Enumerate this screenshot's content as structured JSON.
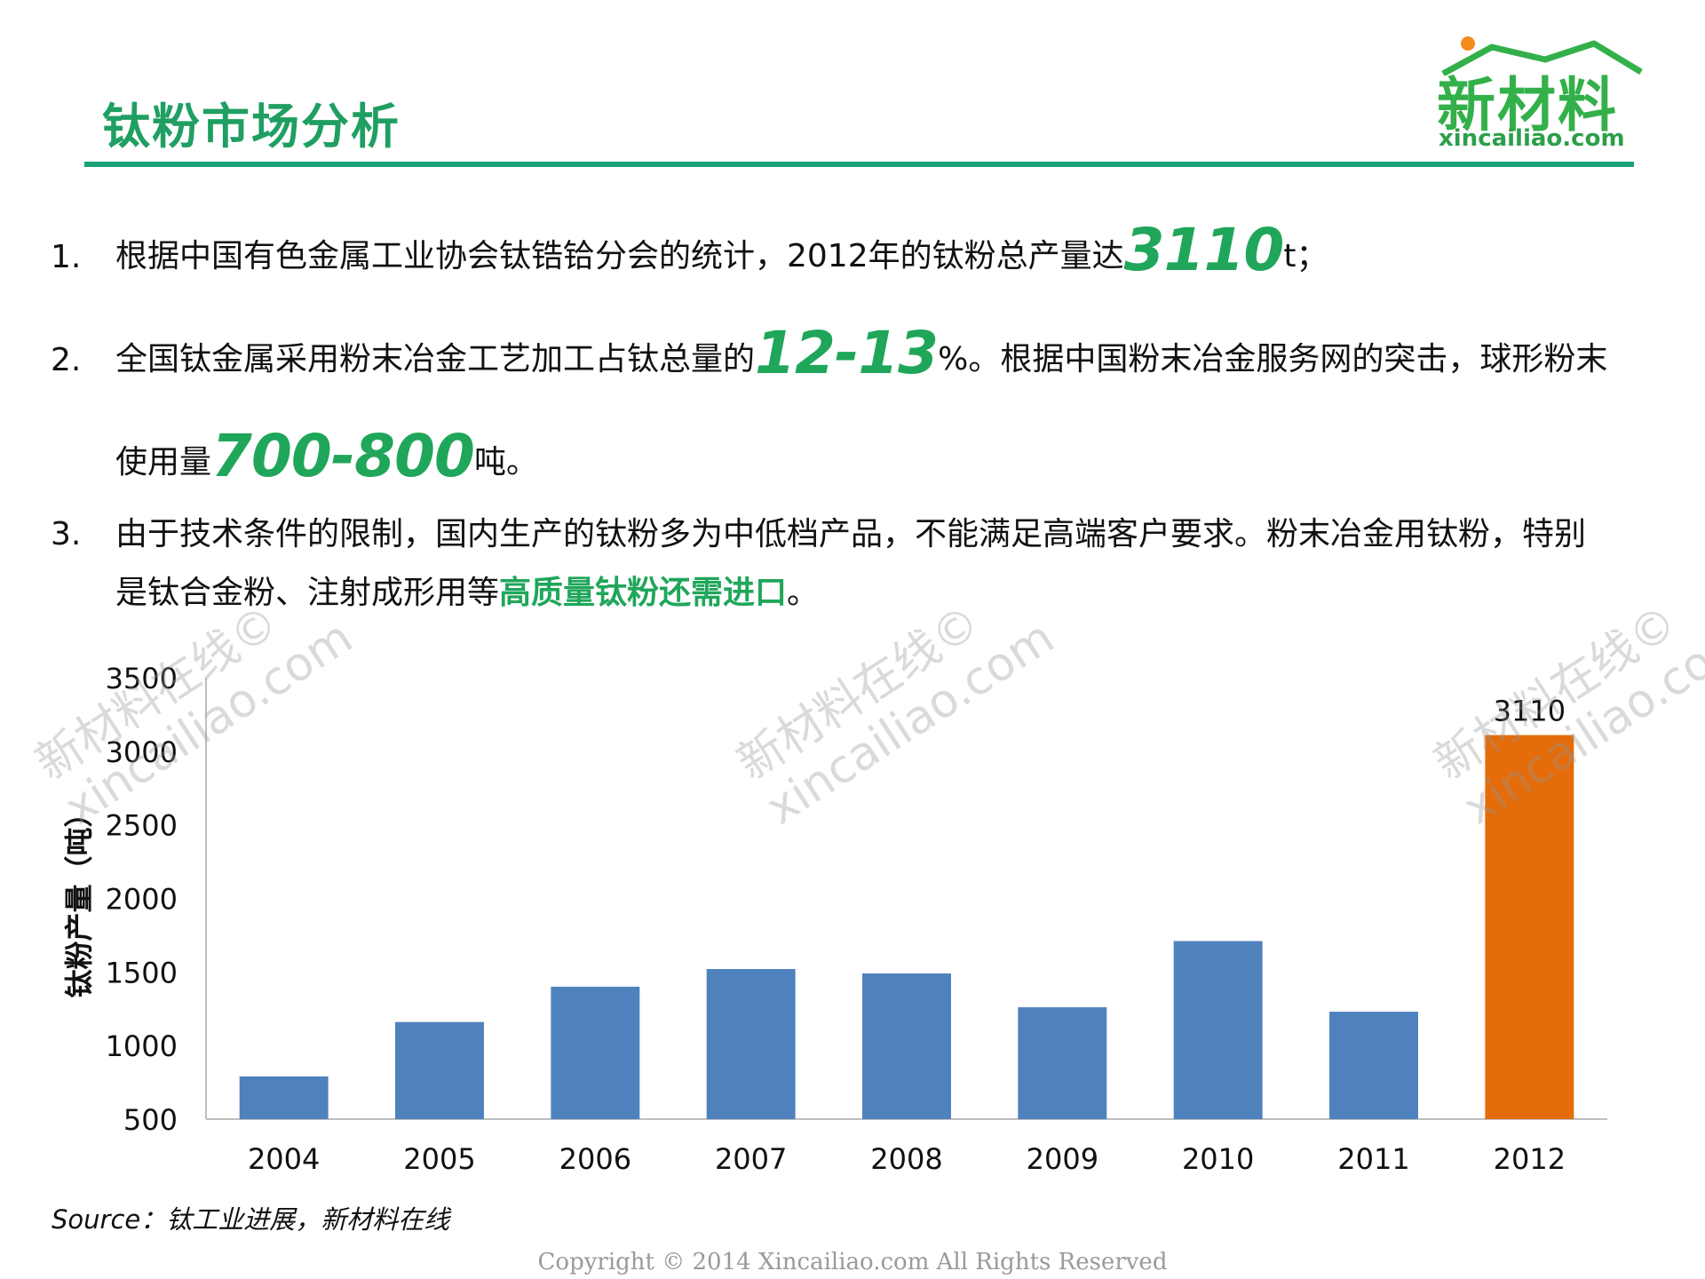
{
  "header": {
    "title": "钛粉市场分析",
    "logo_text": "新材料",
    "logo_url": "xincailiao.com"
  },
  "bullets": [
    {
      "num": "1.",
      "pre": "根据中国有色金属工业协会钛锆铪分会的统计，2012年的钛粉总产量达",
      "hl": "3110",
      "post": "t；"
    },
    {
      "num": "2.",
      "pre": "全国钛金属采用粉末冶金工艺加工占钛总量的",
      "hl": "12-13",
      "post": "%。根据中国粉末冶金服务网的突击，球形粉末",
      "line2_pre": "使用量",
      "line2_hl": "700-800",
      "line2_post": "吨。"
    },
    {
      "num": "3.",
      "line1": "由于技术条件的限制，国内生产的钛粉多为中低档产品，不能满足高端客户要求。粉末冶金用钛粉，特别",
      "line2_pre": "是钛合金粉、注射成形用等",
      "line2_hl": "高质量钛粉还需进口",
      "line2_post": "。"
    }
  ],
  "chart_data": {
    "type": "bar",
    "categories": [
      "2004",
      "2005",
      "2006",
      "2007",
      "2008",
      "2009",
      "2010",
      "2011",
      "2012"
    ],
    "values": [
      790,
      1160,
      1400,
      1520,
      1490,
      1260,
      1710,
      1230,
      3110
    ],
    "ylabel": "钛粉产量（吨）",
    "ylim": [
      500,
      3500
    ],
    "yticks": [
      "500",
      "1000",
      "1500",
      "2000",
      "2500",
      "3000",
      "3500"
    ],
    "data_labels": [
      {
        "category": "2012",
        "text": "3110"
      }
    ],
    "colors": {
      "default": "#4f81bd",
      "highlight": "#e46c0a"
    },
    "highlight_index": 8,
    "grid": false,
    "legend": "none"
  },
  "footer": {
    "source": "Source：钛工业进展，新材料在线",
    "copyright": "Copyright © 2014   Xincailiao.com   All Rights Reserved"
  },
  "watermark": {
    "line1": "新材料在线©",
    "line2": "xincailiao.com"
  }
}
